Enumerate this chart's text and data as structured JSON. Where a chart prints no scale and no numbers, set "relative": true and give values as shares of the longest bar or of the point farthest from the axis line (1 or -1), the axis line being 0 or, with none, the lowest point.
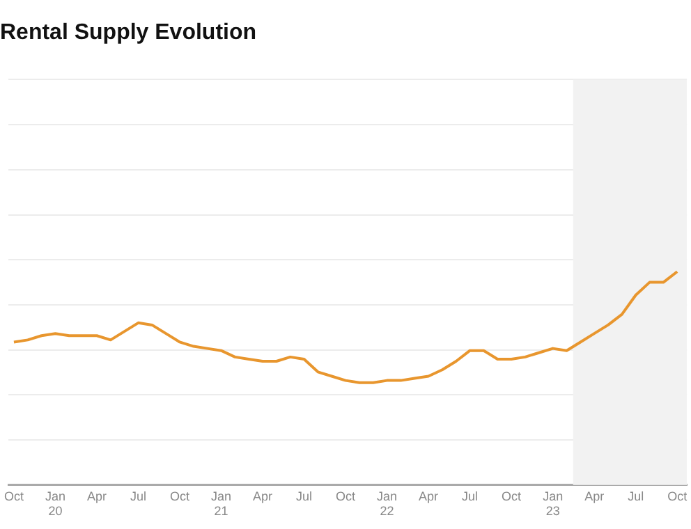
{
  "chart_data": {
    "type": "line",
    "title": "Rental Supply Evolution",
    "relative": true,
    "grid": "y",
    "legend": false,
    "marker": "none",
    "line_style": "solid",
    "x": [
      "2019-10",
      "2019-11",
      "2019-12",
      "2020-01",
      "2020-02",
      "2020-03",
      "2020-04",
      "2020-05",
      "2020-06",
      "2020-07",
      "2020-08",
      "2020-09",
      "2020-10",
      "2020-11",
      "2020-12",
      "2021-01",
      "2021-02",
      "2021-03",
      "2021-04",
      "2021-05",
      "2021-06",
      "2021-07",
      "2021-08",
      "2021-09",
      "2021-10",
      "2021-11",
      "2021-12",
      "2022-01",
      "2022-02",
      "2022-03",
      "2022-04",
      "2022-05",
      "2022-06",
      "2022-07",
      "2022-08",
      "2022-09",
      "2022-10",
      "2022-11",
      "2022-12",
      "2023-01",
      "2023-02",
      "2023-03",
      "2023-04",
      "2023-05",
      "2023-06",
      "2023-07",
      "2023-08",
      "2023-09",
      "2023-10"
    ],
    "xlim": [
      "2019-09-19",
      "2023-10-22"
    ],
    "xticks": [
      {
        "value": "2019-10",
        "label": "Oct"
      },
      {
        "value": "2020-01",
        "label": "Jan 20"
      },
      {
        "value": "2020-04",
        "label": "Apr"
      },
      {
        "value": "2020-07",
        "label": "Jul"
      },
      {
        "value": "2020-10",
        "label": "Oct"
      },
      {
        "value": "2021-01",
        "label": "Jan 21"
      },
      {
        "value": "2021-04",
        "label": "Apr"
      },
      {
        "value": "2021-07",
        "label": "Jul"
      },
      {
        "value": "2021-10",
        "label": "Oct"
      },
      {
        "value": "2022-01",
        "label": "Jan 22"
      },
      {
        "value": "2022-04",
        "label": "Apr"
      },
      {
        "value": "2022-07",
        "label": "Jul"
      },
      {
        "value": "2022-10",
        "label": "Oct"
      },
      {
        "value": "2023-01",
        "label": "Jan 23"
      },
      {
        "value": "2023-04",
        "label": "Apr"
      },
      {
        "value": "2023-07",
        "label": "Jul"
      },
      {
        "value": "2023-10",
        "label": "Oct"
      }
    ],
    "series": [
      {
        "color": "#e8962e",
        "values": [
          0.67,
          0.68,
          0.7,
          0.71,
          0.7,
          0.7,
          0.7,
          0.68,
          0.72,
          0.76,
          0.75,
          0.71,
          0.67,
          0.65,
          0.64,
          0.63,
          0.6,
          0.59,
          0.58,
          0.58,
          0.6,
          0.59,
          0.53,
          0.51,
          0.49,
          0.48,
          0.48,
          0.49,
          0.49,
          0.5,
          0.51,
          0.54,
          0.58,
          0.63,
          0.63,
          0.59,
          0.59,
          0.6,
          0.62,
          0.64,
          0.63,
          0.67,
          0.71,
          0.75,
          0.8,
          0.89,
          0.95,
          0.95,
          1
        ]
      }
    ],
    "bands": [
      {
        "axis": "x",
        "from": "2023-02-15",
        "to": "2023-10-22",
        "color": "#f2f2f2"
      }
    ]
  }
}
